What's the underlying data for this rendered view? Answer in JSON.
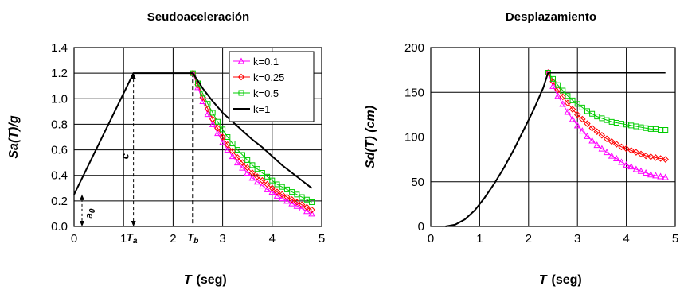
{
  "chart_data": [
    {
      "type": "line",
      "title": "Seudoaceleración",
      "xlabel_symbol": "T",
      "xlabel_unit": "(seg)",
      "ylabel": "Sa(T)/g",
      "xlim": [
        0,
        5
      ],
      "ylim": [
        0,
        1.4
      ],
      "xticks": [
        "0",
        "1",
        "2",
        "3",
        "4",
        "5"
      ],
      "yticks": [
        "0.0",
        "0.2",
        "0.4",
        "0.6",
        "0.8",
        "1.0",
        "1.2",
        "1.4"
      ],
      "grid": true,
      "legend_position": "top-right",
      "annotations": {
        "a0": {
          "symbol": "a",
          "sub": "0",
          "value": 0.25
        },
        "c": {
          "symbol": "c",
          "value": 1.2
        },
        "Ta": {
          "symbol": "T",
          "sub": "a",
          "value": 1.2
        },
        "Tb": {
          "symbol": "T",
          "sub": "b",
          "value": 2.4
        }
      },
      "series": [
        {
          "name": "k=0.1",
          "color": "#ff00ff",
          "marker": "triangle",
          "x": [
            2.4,
            2.5,
            2.6,
            2.7,
            2.8,
            2.9,
            3.0,
            3.1,
            3.2,
            3.3,
            3.4,
            3.5,
            3.6,
            3.7,
            3.8,
            3.9,
            4.0,
            4.1,
            4.2,
            4.3,
            4.4,
            4.5,
            4.6,
            4.7,
            4.8
          ],
          "y": [
            1.2,
            1.09,
            0.98,
            0.88,
            0.8,
            0.73,
            0.66,
            0.6,
            0.55,
            0.5,
            0.46,
            0.42,
            0.38,
            0.35,
            0.32,
            0.29,
            0.27,
            0.24,
            0.22,
            0.2,
            0.18,
            0.16,
            0.14,
            0.12,
            0.1
          ]
        },
        {
          "name": "k=0.25",
          "color": "#ff0000",
          "marker": "diamond",
          "x": [
            2.4,
            2.5,
            2.6,
            2.7,
            2.8,
            2.9,
            3.0,
            3.1,
            3.2,
            3.3,
            3.4,
            3.5,
            3.6,
            3.7,
            3.8,
            3.9,
            4.0,
            4.1,
            4.2,
            4.3,
            4.4,
            4.5,
            4.6,
            4.7,
            4.8
          ],
          "y": [
            1.2,
            1.11,
            1.01,
            0.92,
            0.84,
            0.77,
            0.7,
            0.64,
            0.59,
            0.54,
            0.5,
            0.46,
            0.42,
            0.39,
            0.36,
            0.33,
            0.3,
            0.27,
            0.25,
            0.23,
            0.21,
            0.19,
            0.17,
            0.15,
            0.13
          ]
        },
        {
          "name": "k=0.5",
          "color": "#00cc00",
          "marker": "square",
          "x": [
            2.4,
            2.5,
            2.6,
            2.7,
            2.8,
            2.9,
            3.0,
            3.1,
            3.2,
            3.3,
            3.4,
            3.5,
            3.6,
            3.7,
            3.8,
            3.9,
            4.0,
            4.1,
            4.2,
            4.3,
            4.4,
            4.5,
            4.6,
            4.7,
            4.8
          ],
          "y": [
            1.2,
            1.12,
            1.04,
            0.96,
            0.89,
            0.82,
            0.76,
            0.7,
            0.65,
            0.6,
            0.56,
            0.52,
            0.48,
            0.45,
            0.42,
            0.39,
            0.36,
            0.33,
            0.31,
            0.29,
            0.27,
            0.25,
            0.23,
            0.21,
            0.19
          ]
        },
        {
          "name": "k=1",
          "color": "#000000",
          "marker": "none",
          "x": [
            0,
            1.2,
            2.4,
            2.6,
            2.8,
            3.0,
            3.2,
            3.4,
            3.6,
            3.8,
            4.0,
            4.2,
            4.4,
            4.6,
            4.8
          ],
          "y": [
            0.25,
            1.2,
            1.2,
            1.08,
            0.98,
            0.89,
            0.82,
            0.75,
            0.68,
            0.62,
            0.55,
            0.48,
            0.42,
            0.36,
            0.3
          ]
        }
      ]
    },
    {
      "type": "line",
      "title": "Desplazamiento",
      "xlabel_symbol": "T",
      "xlabel_unit": "(seg)",
      "ylabel": "Sd(T) (cm)",
      "xlim": [
        0,
        5
      ],
      "ylim": [
        0,
        200
      ],
      "xticks": [
        "0",
        "1",
        "2",
        "3",
        "4",
        "5"
      ],
      "yticks": [
        "0",
        "50",
        "100",
        "150",
        "200"
      ],
      "grid": true,
      "series": [
        {
          "name": "k=0.1",
          "color": "#ff00ff",
          "marker": "triangle",
          "x": [
            2.4,
            2.5,
            2.6,
            2.7,
            2.8,
            2.9,
            3.0,
            3.1,
            3.2,
            3.3,
            3.4,
            3.5,
            3.6,
            3.7,
            3.8,
            3.9,
            4.0,
            4.1,
            4.2,
            4.3,
            4.4,
            4.5,
            4.6,
            4.7,
            4.8
          ],
          "y": [
            172,
            157,
            146,
            137,
            128,
            120,
            113,
            107,
            101,
            96,
            91,
            87,
            83,
            79,
            76,
            72,
            69,
            67,
            64,
            62,
            60,
            58,
            57,
            56,
            55
          ]
        },
        {
          "name": "k=0.25",
          "color": "#ff0000",
          "marker": "diamond",
          "x": [
            2.4,
            2.5,
            2.6,
            2.7,
            2.8,
            2.9,
            3.0,
            3.1,
            3.2,
            3.3,
            3.4,
            3.5,
            3.6,
            3.7,
            3.8,
            3.9,
            4.0,
            4.1,
            4.2,
            4.3,
            4.4,
            4.5,
            4.6,
            4.7,
            4.8
          ],
          "y": [
            172,
            162,
            153,
            145,
            138,
            131,
            125,
            120,
            115,
            110,
            106,
            102,
            98,
            95,
            92,
            89,
            87,
            85,
            83,
            81,
            79,
            78,
            77,
            76,
            75
          ]
        },
        {
          "name": "k=0.5",
          "color": "#00cc00",
          "marker": "square",
          "x": [
            2.4,
            2.5,
            2.6,
            2.7,
            2.8,
            2.9,
            3.0,
            3.1,
            3.2,
            3.3,
            3.4,
            3.5,
            3.6,
            3.7,
            3.8,
            3.9,
            4.0,
            4.1,
            4.2,
            4.3,
            4.4,
            4.5,
            4.6,
            4.7,
            4.8
          ],
          "y": [
            172,
            165,
            158,
            152,
            146,
            141,
            137,
            133,
            129,
            126,
            123,
            121,
            119,
            117,
            116,
            115,
            114,
            113,
            112,
            111,
            110,
            109,
            109,
            108,
            108
          ]
        },
        {
          "name": "k=1",
          "color": "#000000",
          "marker": "none",
          "x": [
            0.3,
            0.5,
            0.7,
            0.9,
            1.1,
            1.3,
            1.5,
            1.7,
            1.9,
            2.1,
            2.3,
            2.4,
            4.8
          ],
          "y": [
            0,
            2,
            8,
            18,
            32,
            48,
            66,
            86,
            108,
            130,
            155,
            172,
            172
          ]
        }
      ]
    }
  ]
}
